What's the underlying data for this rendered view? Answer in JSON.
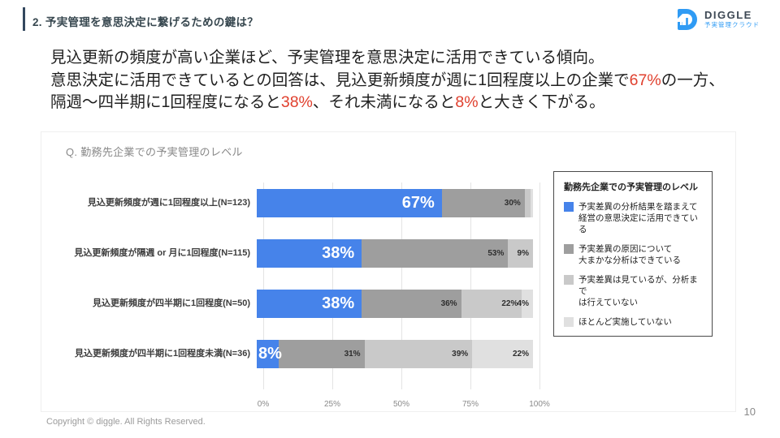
{
  "header": {
    "title": "2. 予実管理を意思決定に繋げるための鍵は？",
    "logo": {
      "name": "DIGGLE",
      "subtitle": "予実管理クラウド",
      "brand_color": "#2f9bf4"
    }
  },
  "lead": {
    "line1": "見込更新の頻度が高い企業ほど、予実管理を意思決定に活用できている傾向。",
    "line2_pre": "意思決定に活用できているとの回答は、見込更新頻度が週に1回程度以上の企業で",
    "line2_red": "67%",
    "line2_post": "の一方、",
    "line3_pre": "隔週〜四半期に1回程度になると",
    "line3_red1": "38%",
    "line3_mid": "、それ未満になると",
    "line3_red2": "8%",
    "line3_post": "と大きく下がる。",
    "highlight_color": "#e0402e"
  },
  "chart": {
    "title": "Q. 勤務先企業での予実管理のレベル"
  },
  "chart_data": {
    "type": "bar",
    "orientation": "horizontal-stacked",
    "title": "Q. 勤務先企業での予実管理のレベル",
    "categories": [
      "見込更新頻度が週に1回程度以上(N=123)",
      "見込更新頻度が隔週 or 月に1回程度(N=115)",
      "見込更新頻度が四半期に1回程度(N=50)",
      "見込更新頻度が四半期に1回程度未満(N=36)"
    ],
    "series": [
      {
        "name": "予実差異の分析結果を踏まえて経営の意思決定に活用できている",
        "color": "#4683ea",
        "values": [
          67,
          38,
          38,
          8
        ]
      },
      {
        "name": "予実差異の原因について大まかな分析はできている",
        "color": "#9e9e9e",
        "values": [
          30,
          53,
          36,
          31
        ]
      },
      {
        "name": "予実差異は見ているが、分析までは行えていない",
        "color": "#c9c9c9",
        "values": [
          2,
          9,
          22,
          39
        ]
      },
      {
        "name": "ほとんど実施していない",
        "color": "#e0e0e0",
        "values": [
          1,
          0,
          4,
          22
        ]
      }
    ],
    "xticks": [
      "0%",
      "25%",
      "50%",
      "75%",
      "100%"
    ],
    "xlim": [
      0,
      100
    ],
    "grid": true,
    "label_min_show": 4,
    "legend_position": "right"
  },
  "legend": {
    "title": "勤務先企業での予実管理のレベル",
    "items": [
      {
        "color": "#4683ea",
        "label": "予実差異の分析結果を踏まえて\n経営の意思決定に活用できている"
      },
      {
        "color": "#9e9e9e",
        "label": "予実差異の原因について\n大まかな分析はできている"
      },
      {
        "color": "#c9c9c9",
        "label": "予実差異は見ているが、分析まで\nは行えていない"
      },
      {
        "color": "#e0e0e0",
        "label": "ほとんど実施していない"
      }
    ]
  },
  "footer": {
    "copyright": "Copyright © diggle. All Rights Reserved.",
    "page": "10"
  }
}
